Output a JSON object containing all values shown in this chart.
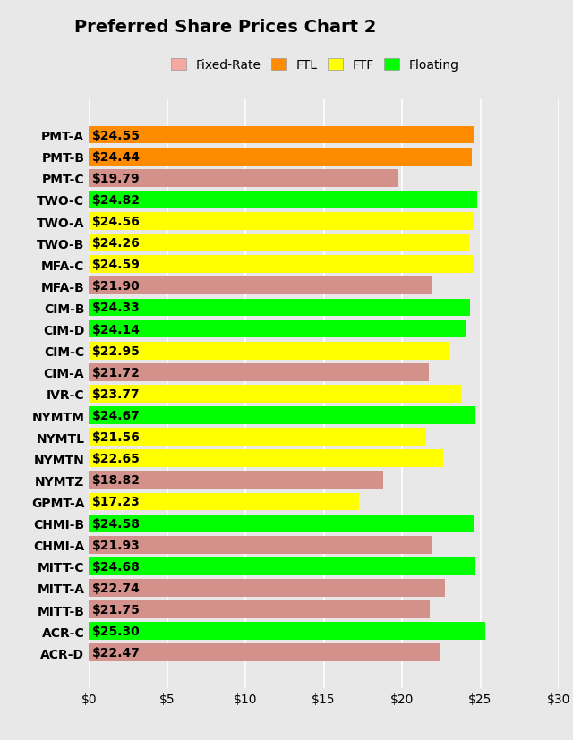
{
  "title": "Preferred Share Prices Chart 2",
  "categories": [
    "PMT-A",
    "PMT-B",
    "PMT-C",
    "TWO-C",
    "TWO-A",
    "TWO-B",
    "MFA-C",
    "MFA-B",
    "CIM-B",
    "CIM-D",
    "CIM-C",
    "CIM-A",
    "IVR-C",
    "NYMTM",
    "NYMTL",
    "NYMTN",
    "NYMTZ",
    "GPMT-A",
    "CHMI-B",
    "CHMI-A",
    "MITT-C",
    "MITT-A",
    "MITT-B",
    "ACR-C",
    "ACR-D"
  ],
  "values": [
    24.55,
    24.44,
    19.79,
    24.82,
    24.56,
    24.26,
    24.59,
    21.9,
    24.33,
    24.14,
    22.95,
    21.72,
    23.77,
    24.67,
    21.56,
    22.65,
    18.82,
    17.23,
    24.58,
    21.93,
    24.68,
    22.74,
    21.75,
    25.3,
    22.47
  ],
  "labels": [
    "$24.55",
    "$24.44",
    "$19.79",
    "$24.82",
    "$24.56",
    "$24.26",
    "$24.59",
    "$21.90",
    "$24.33",
    "$24.14",
    "$22.95",
    "$21.72",
    "$23.77",
    "$24.67",
    "$21.56",
    "$22.65",
    "$18.82",
    "$17.23",
    "$24.58",
    "$21.93",
    "$24.68",
    "$22.74",
    "$21.75",
    "$25.30",
    "$22.47"
  ],
  "colors": [
    "#FF8C00",
    "#FF8C00",
    "#D4908A",
    "#00FF00",
    "#FFFF00",
    "#FFFF00",
    "#FFFF00",
    "#D4908A",
    "#00FF00",
    "#00FF00",
    "#FFFF00",
    "#D4908A",
    "#FFFF00",
    "#00FF00",
    "#FFFF00",
    "#FFFF00",
    "#D4908A",
    "#FFFF00",
    "#00FF00",
    "#D4908A",
    "#00FF00",
    "#D4908A",
    "#D4908A",
    "#00FF00",
    "#D4908A"
  ],
  "legend_labels": [
    "Fixed-Rate",
    "FTL",
    "FTF",
    "Floating"
  ],
  "legend_colors": [
    "#F4A8A0",
    "#FF8C00",
    "#FFFF00",
    "#00FF00"
  ],
  "xlim": [
    0,
    30
  ],
  "xticks": [
    0,
    5,
    10,
    15,
    20,
    25,
    30
  ],
  "xtick_labels": [
    "$0",
    "$5",
    "$10",
    "$15",
    "$20",
    "$25",
    "$30"
  ],
  "bg_color": "#E8E8E8",
  "bar_height": 0.82,
  "label_fontsize": 10,
  "title_fontsize": 14,
  "axis_fontsize": 10,
  "value_label_color": "#000000"
}
